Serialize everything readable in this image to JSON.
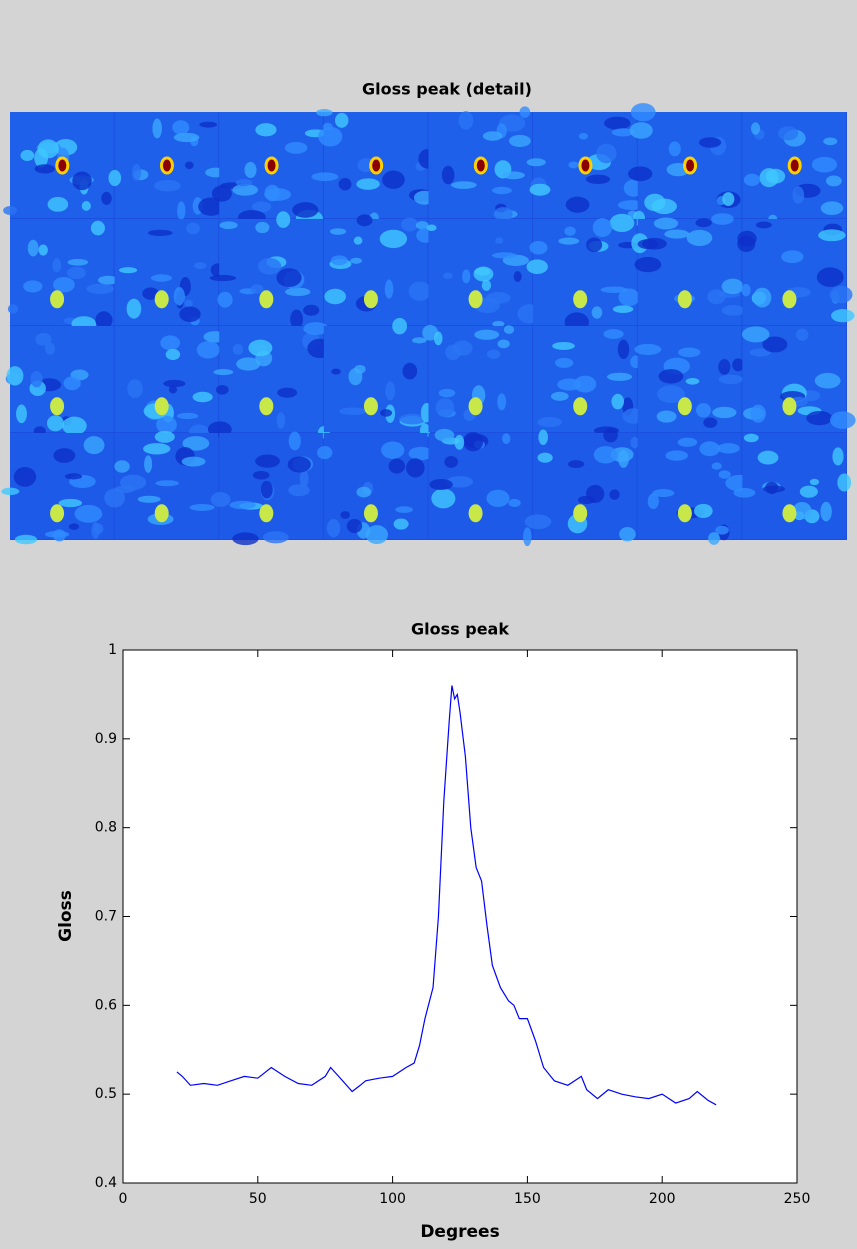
{
  "chart_data": [
    {
      "type": "image",
      "title": "Gloss peak (detail)"
    },
    {
      "type": "line",
      "title": "Gloss peak",
      "x_label": "Degrees",
      "y_label": "Gloss",
      "xlim": [
        0,
        250
      ],
      "ylim": [
        0.4,
        1
      ],
      "xticks": [
        0,
        50,
        100,
        150,
        200,
        250
      ],
      "yticks": [
        0.4,
        0.5,
        0.6,
        0.7,
        0.8,
        0.9,
        1
      ],
      "x": [
        20,
        22,
        25,
        30,
        35,
        40,
        45,
        50,
        55,
        60,
        65,
        70,
        75,
        77,
        80,
        85,
        88,
        90,
        95,
        100,
        105,
        108,
        110,
        112,
        115,
        117,
        119,
        121,
        122,
        123,
        124,
        125,
        127,
        129,
        131,
        133,
        135,
        137,
        140,
        143,
        145,
        147,
        150,
        153,
        156,
        160,
        165,
        170,
        172,
        176,
        180,
        185,
        190,
        195,
        200,
        205,
        210,
        213,
        217,
        220
      ],
      "series": [
        {
          "color": "#0000ff",
          "values": [
            0.525,
            0.52,
            0.51,
            0.512,
            0.51,
            0.515,
            0.52,
            0.518,
            0.53,
            0.52,
            0.512,
            0.51,
            0.52,
            0.53,
            0.52,
            0.503,
            0.51,
            0.515,
            0.518,
            0.52,
            0.53,
            0.535,
            0.555,
            0.585,
            0.62,
            0.7,
            0.83,
            0.92,
            0.96,
            0.945,
            0.95,
            0.93,
            0.88,
            0.8,
            0.755,
            0.74,
            0.69,
            0.645,
            0.62,
            0.605,
            0.6,
            0.585,
            0.585,
            0.56,
            0.53,
            0.515,
            0.51,
            0.52,
            0.505,
            0.495,
            0.505,
            0.5,
            0.497,
            0.495,
            0.5,
            0.49,
            0.495,
            0.503,
            0.493,
            0.488
          ]
        }
      ]
    }
  ]
}
